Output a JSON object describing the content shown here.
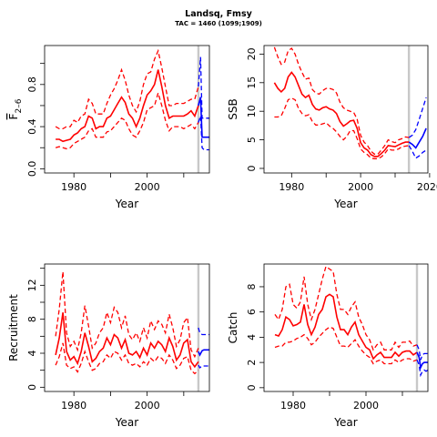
{
  "title": "Landsq, Fmsy",
  "subtitle": "TAC = 1460 (1099;1909)",
  "colors": {
    "historic": "#ff0000",
    "forecast": "#0000ff",
    "vline": "#c8c8c8",
    "axis": "#000000"
  },
  "chart_data": [
    {
      "type": "line",
      "id": "fbar",
      "xlabel": "Year",
      "ylabel_text": "F",
      "ylabel_sub": "2–6",
      "xlim": [
        1972,
        2017
      ],
      "ylim": [
        -0.04,
        1.17
      ],
      "xticks": [
        1980,
        2000
      ],
      "xminorticks": [
        1990,
        2010
      ],
      "yticks": [
        0.0,
        0.4,
        0.8
      ],
      "yticklabels": [
        "0.0",
        "0.4",
        "0.8"
      ],
      "yminorticks": [
        0.2,
        0.6,
        1.0
      ],
      "vline": 2014,
      "historic": {
        "x": [
          1975,
          1976,
          1977,
          1978,
          1979,
          1980,
          1981,
          1982,
          1983,
          1984,
          1985,
          1986,
          1987,
          1988,
          1989,
          1990,
          1991,
          1992,
          1993,
          1994,
          1995,
          1996,
          1997,
          1998,
          1999,
          2000,
          2001,
          2002,
          2003,
          2004,
          2005,
          2006,
          2007,
          2008,
          2009,
          2010,
          2011,
          2012,
          2013,
          2014
        ],
        "mid": [
          0.28,
          0.28,
          0.26,
          0.27,
          0.28,
          0.32,
          0.34,
          0.38,
          0.4,
          0.5,
          0.48,
          0.38,
          0.4,
          0.4,
          0.48,
          0.5,
          0.56,
          0.62,
          0.68,
          0.63,
          0.52,
          0.48,
          0.4,
          0.48,
          0.6,
          0.7,
          0.74,
          0.8,
          0.94,
          0.78,
          0.6,
          0.48,
          0.5,
          0.5,
          0.5,
          0.5,
          0.52,
          0.55,
          0.5,
          0.6
        ],
        "lower": [
          0.2,
          0.21,
          0.2,
          0.19,
          0.2,
          0.24,
          0.26,
          0.28,
          0.3,
          0.36,
          0.38,
          0.3,
          0.3,
          0.3,
          0.35,
          0.36,
          0.4,
          0.44,
          0.48,
          0.46,
          0.38,
          0.32,
          0.3,
          0.36,
          0.44,
          0.56,
          0.58,
          0.6,
          0.72,
          0.6,
          0.46,
          0.36,
          0.4,
          0.4,
          0.4,
          0.38,
          0.4,
          0.42,
          0.38,
          0.44
        ],
        "upper": [
          0.4,
          0.38,
          0.38,
          0.4,
          0.4,
          0.46,
          0.44,
          0.5,
          0.52,
          0.66,
          0.62,
          0.52,
          0.52,
          0.52,
          0.62,
          0.7,
          0.76,
          0.84,
          0.94,
          0.84,
          0.7,
          0.6,
          0.54,
          0.64,
          0.8,
          0.9,
          0.92,
          1.04,
          1.12,
          0.96,
          0.78,
          0.6,
          0.6,
          0.62,
          0.62,
          0.62,
          0.64,
          0.66,
          0.66,
          0.78
        ]
      },
      "forecast": {
        "x": [
          2014,
          2014.6,
          2015,
          2015.5,
          2016,
          2016.5,
          2017
        ],
        "mid": [
          0.6,
          0.68,
          0.3,
          0.3,
          0.3,
          0.3,
          0.3
        ],
        "lower": [
          0.44,
          0.5,
          0.2,
          0.18,
          0.18,
          0.18,
          0.18
        ],
        "upper": [
          0.78,
          1.06,
          0.48,
          0.48,
          0.48,
          0.48,
          0.48
        ]
      }
    },
    {
      "type": "line",
      "id": "ssb",
      "xlabel": "Year",
      "ylabel_text": "SSB",
      "ylabel_sub": "",
      "xlim": [
        1972,
        2019.5
      ],
      "ylim": [
        -0.8,
        21.5
      ],
      "xticks": [
        1980,
        2000,
        2020
      ],
      "xminorticks": [
        1990,
        2010
      ],
      "yticks": [
        0,
        5,
        10,
        15,
        20
      ],
      "yticklabels": [
        "0",
        "5",
        "10",
        "15",
        "20"
      ],
      "yminorticks": [],
      "vline": 2014,
      "historic": {
        "x": [
          1975,
          1976,
          1977,
          1978,
          1979,
          1980,
          1981,
          1982,
          1983,
          1984,
          1985,
          1986,
          1987,
          1988,
          1989,
          1990,
          1991,
          1992,
          1993,
          1994,
          1995,
          1996,
          1997,
          1998,
          1999,
          2000,
          2001,
          2002,
          2003,
          2004,
          2005,
          2006,
          2007,
          2008,
          2009,
          2010,
          2011,
          2012,
          2013,
          2014
        ],
        "mid": [
          15.0,
          14.0,
          13.4,
          14.0,
          16.0,
          16.8,
          16.0,
          14.5,
          13.0,
          12.4,
          12.8,
          11.2,
          10.4,
          10.2,
          10.6,
          10.8,
          10.4,
          10.2,
          9.6,
          8.2,
          7.4,
          7.8,
          8.3,
          8.4,
          7.0,
          4.5,
          3.6,
          3.2,
          2.4,
          2.1,
          2.1,
          2.6,
          3.2,
          4.0,
          3.9,
          3.8,
          4.1,
          4.4,
          4.6,
          4.6
        ],
        "lower": [
          9.0,
          9.0,
          9.2,
          10.5,
          12.0,
          12.3,
          12.0,
          10.5,
          9.6,
          9.2,
          9.4,
          8.2,
          7.6,
          7.6,
          7.8,
          8.0,
          7.4,
          7.0,
          6.4,
          5.6,
          5.0,
          5.6,
          6.6,
          6.6,
          5.2,
          3.4,
          2.8,
          2.4,
          1.8,
          1.7,
          1.7,
          2.0,
          2.6,
          3.4,
          3.2,
          3.2,
          3.4,
          3.8,
          3.9,
          4.0
        ],
        "upper": [
          21.2,
          19.5,
          18.2,
          18.6,
          20.6,
          21.0,
          20.0,
          18.2,
          16.8,
          15.6,
          15.8,
          13.8,
          13.2,
          13.0,
          13.6,
          14.0,
          14.0,
          13.8,
          13.2,
          11.6,
          10.6,
          10.2,
          10.0,
          9.8,
          8.6,
          5.8,
          4.6,
          4.0,
          3.0,
          2.5,
          2.5,
          3.2,
          4.0,
          5.0,
          4.7,
          4.5,
          5.0,
          5.2,
          5.5,
          5.4
        ]
      },
      "forecast": {
        "x": [
          2014,
          2015,
          2016,
          2017,
          2018,
          2019
        ],
        "mid": [
          4.6,
          4.2,
          3.6,
          4.6,
          5.6,
          7.0
        ],
        "lower": [
          4.0,
          3.0,
          1.8,
          2.2,
          2.8,
          3.2
        ],
        "upper": [
          5.4,
          5.8,
          6.8,
          8.6,
          10.5,
          12.4
        ]
      }
    },
    {
      "type": "line",
      "id": "recruitment",
      "xlabel": "Year",
      "ylabel_text": "Recruitment",
      "ylabel_sub": "",
      "xlim": [
        1972,
        2017
      ],
      "ylim": [
        -0.5,
        14.5
      ],
      "xticks": [
        1980,
        2000
      ],
      "xminorticks": [
        1990,
        2010
      ],
      "yticks": [
        0,
        4,
        8,
        12
      ],
      "yticklabels": [
        "0",
        "4",
        "8",
        "12"
      ],
      "yminorticks": [
        2,
        6,
        10,
        14
      ],
      "vline": 2014,
      "historic": {
        "x": [
          1975,
          1976,
          1977,
          1978,
          1979,
          1980,
          1981,
          1982,
          1983,
          1984,
          1985,
          1986,
          1987,
          1988,
          1989,
          1990,
          1991,
          1992,
          1993,
          1994,
          1995,
          1996,
          1997,
          1998,
          1999,
          2000,
          2001,
          2002,
          2003,
          2004,
          2005,
          2006,
          2007,
          2008,
          2009,
          2010,
          2011,
          2012,
          2013,
          2014
        ],
        "mid": [
          3.8,
          5.8,
          8.8,
          4.2,
          3.2,
          3.6,
          2.8,
          4.2,
          6.4,
          4.8,
          3.0,
          3.4,
          4.2,
          4.6,
          5.8,
          5.0,
          6.2,
          5.8,
          4.6,
          5.6,
          4.0,
          3.8,
          4.2,
          3.5,
          4.6,
          3.8,
          5.2,
          4.6,
          5.4,
          5.0,
          4.2,
          5.8,
          4.8,
          3.2,
          3.8,
          5.2,
          5.6,
          3.0,
          2.4,
          3.0
        ],
        "lower": [
          2.6,
          3.6,
          5.2,
          2.6,
          2.2,
          2.4,
          1.8,
          2.8,
          4.2,
          3.0,
          2.0,
          2.2,
          2.8,
          3.0,
          3.8,
          3.4,
          4.2,
          4.0,
          3.2,
          3.8,
          2.8,
          2.6,
          2.8,
          2.4,
          3.0,
          2.6,
          3.4,
          3.0,
          3.6,
          3.4,
          2.8,
          3.8,
          3.2,
          2.2,
          2.6,
          3.4,
          3.6,
          2.0,
          1.6,
          2.0
        ],
        "upper": [
          6.0,
          9.2,
          13.6,
          6.4,
          4.8,
          5.4,
          4.4,
          6.4,
          9.6,
          7.2,
          4.6,
          5.2,
          6.4,
          7.0,
          8.8,
          7.6,
          9.4,
          8.8,
          7.0,
          8.4,
          6.2,
          5.6,
          6.4,
          5.4,
          7.0,
          5.8,
          7.8,
          6.8,
          7.8,
          7.4,
          6.4,
          8.6,
          7.0,
          4.8,
          5.6,
          7.6,
          8.2,
          4.4,
          3.6,
          4.6
        ]
      },
      "forecast": {
        "x": [
          2014,
          2014.4,
          2015,
          2015.5,
          2016,
          2016.5,
          2017
        ],
        "mid": [
          4.2,
          3.8,
          4.3,
          4.4,
          4.4,
          4.4,
          4.4
        ],
        "lower": [
          2.6,
          2.3,
          2.5,
          2.5,
          2.5,
          2.5,
          2.5
        ],
        "upper": [
          7.0,
          6.4,
          6.2,
          6.2,
          6.2,
          6.2,
          6.2
        ]
      }
    },
    {
      "type": "line",
      "id": "catch",
      "xlabel": "Year",
      "ylabel_text": "Catch",
      "ylabel_sub": "",
      "xlim": [
        1972,
        2017
      ],
      "ylim": [
        -0.3,
        9.8
      ],
      "xticks": [
        1980,
        2000
      ],
      "xminorticks": [
        1990,
        2010
      ],
      "yticks": [
        0,
        2,
        4,
        6,
        8
      ],
      "yticklabels": [
        "0",
        "2",
        "4",
        "6",
        "8"
      ],
      "yminorticks": [],
      "vline": 2014,
      "historic": {
        "x": [
          1975,
          1976,
          1977,
          1978,
          1979,
          1980,
          1981,
          1982,
          1983,
          1984,
          1985,
          1986,
          1987,
          1988,
          1989,
          1990,
          1991,
          1992,
          1993,
          1994,
          1995,
          1996,
          1997,
          1998,
          1999,
          2000,
          2001,
          2002,
          2003,
          2004,
          2005,
          2006,
          2007,
          2008,
          2009,
          2010,
          2011,
          2012,
          2013,
          2014
        ],
        "mid": [
          4.2,
          4.1,
          4.6,
          5.6,
          5.4,
          4.9,
          5.0,
          5.2,
          6.6,
          5.0,
          4.2,
          4.8,
          5.8,
          6.2,
          7.2,
          7.4,
          7.2,
          5.6,
          4.6,
          4.6,
          4.2,
          4.8,
          5.2,
          4.2,
          3.7,
          3.2,
          3.0,
          2.3,
          2.6,
          2.8,
          2.4,
          2.4,
          2.4,
          2.8,
          2.5,
          2.8,
          2.9,
          2.9,
          2.6,
          2.8
        ],
        "lower": [
          3.2,
          3.3,
          3.3,
          3.6,
          3.6,
          3.7,
          3.9,
          4.0,
          4.2,
          3.9,
          3.4,
          3.6,
          4.0,
          4.3,
          4.6,
          4.8,
          4.7,
          4.0,
          3.3,
          3.3,
          3.2,
          3.5,
          3.8,
          3.3,
          2.9,
          2.6,
          2.4,
          1.9,
          2.1,
          2.2,
          1.9,
          1.9,
          1.9,
          2.2,
          2.0,
          2.2,
          2.3,
          2.3,
          2.1,
          2.2
        ],
        "upper": [
          5.8,
          5.4,
          6.2,
          8.0,
          8.2,
          6.6,
          6.3,
          6.8,
          8.8,
          6.6,
          5.4,
          6.2,
          7.4,
          8.6,
          9.6,
          9.4,
          9.2,
          7.4,
          6.2,
          6.2,
          5.8,
          6.4,
          6.8,
          5.6,
          5.0,
          4.2,
          3.8,
          3.0,
          3.4,
          3.6,
          3.0,
          3.0,
          3.0,
          3.6,
          3.2,
          3.6,
          3.6,
          3.7,
          3.3,
          3.4
        ]
      },
      "forecast": {
        "x": [
          2014,
          2014.6,
          2015,
          2015.5,
          2016,
          2016.5,
          2017
        ],
        "mid": [
          2.8,
          2.4,
          1.6,
          1.9,
          2.0,
          2.0,
          2.0
        ],
        "lower": [
          2.2,
          1.8,
          1.0,
          1.3,
          1.4,
          1.3,
          1.4
        ],
        "upper": [
          3.4,
          3.0,
          2.2,
          2.6,
          2.7,
          2.7,
          2.7
        ]
      }
    }
  ]
}
